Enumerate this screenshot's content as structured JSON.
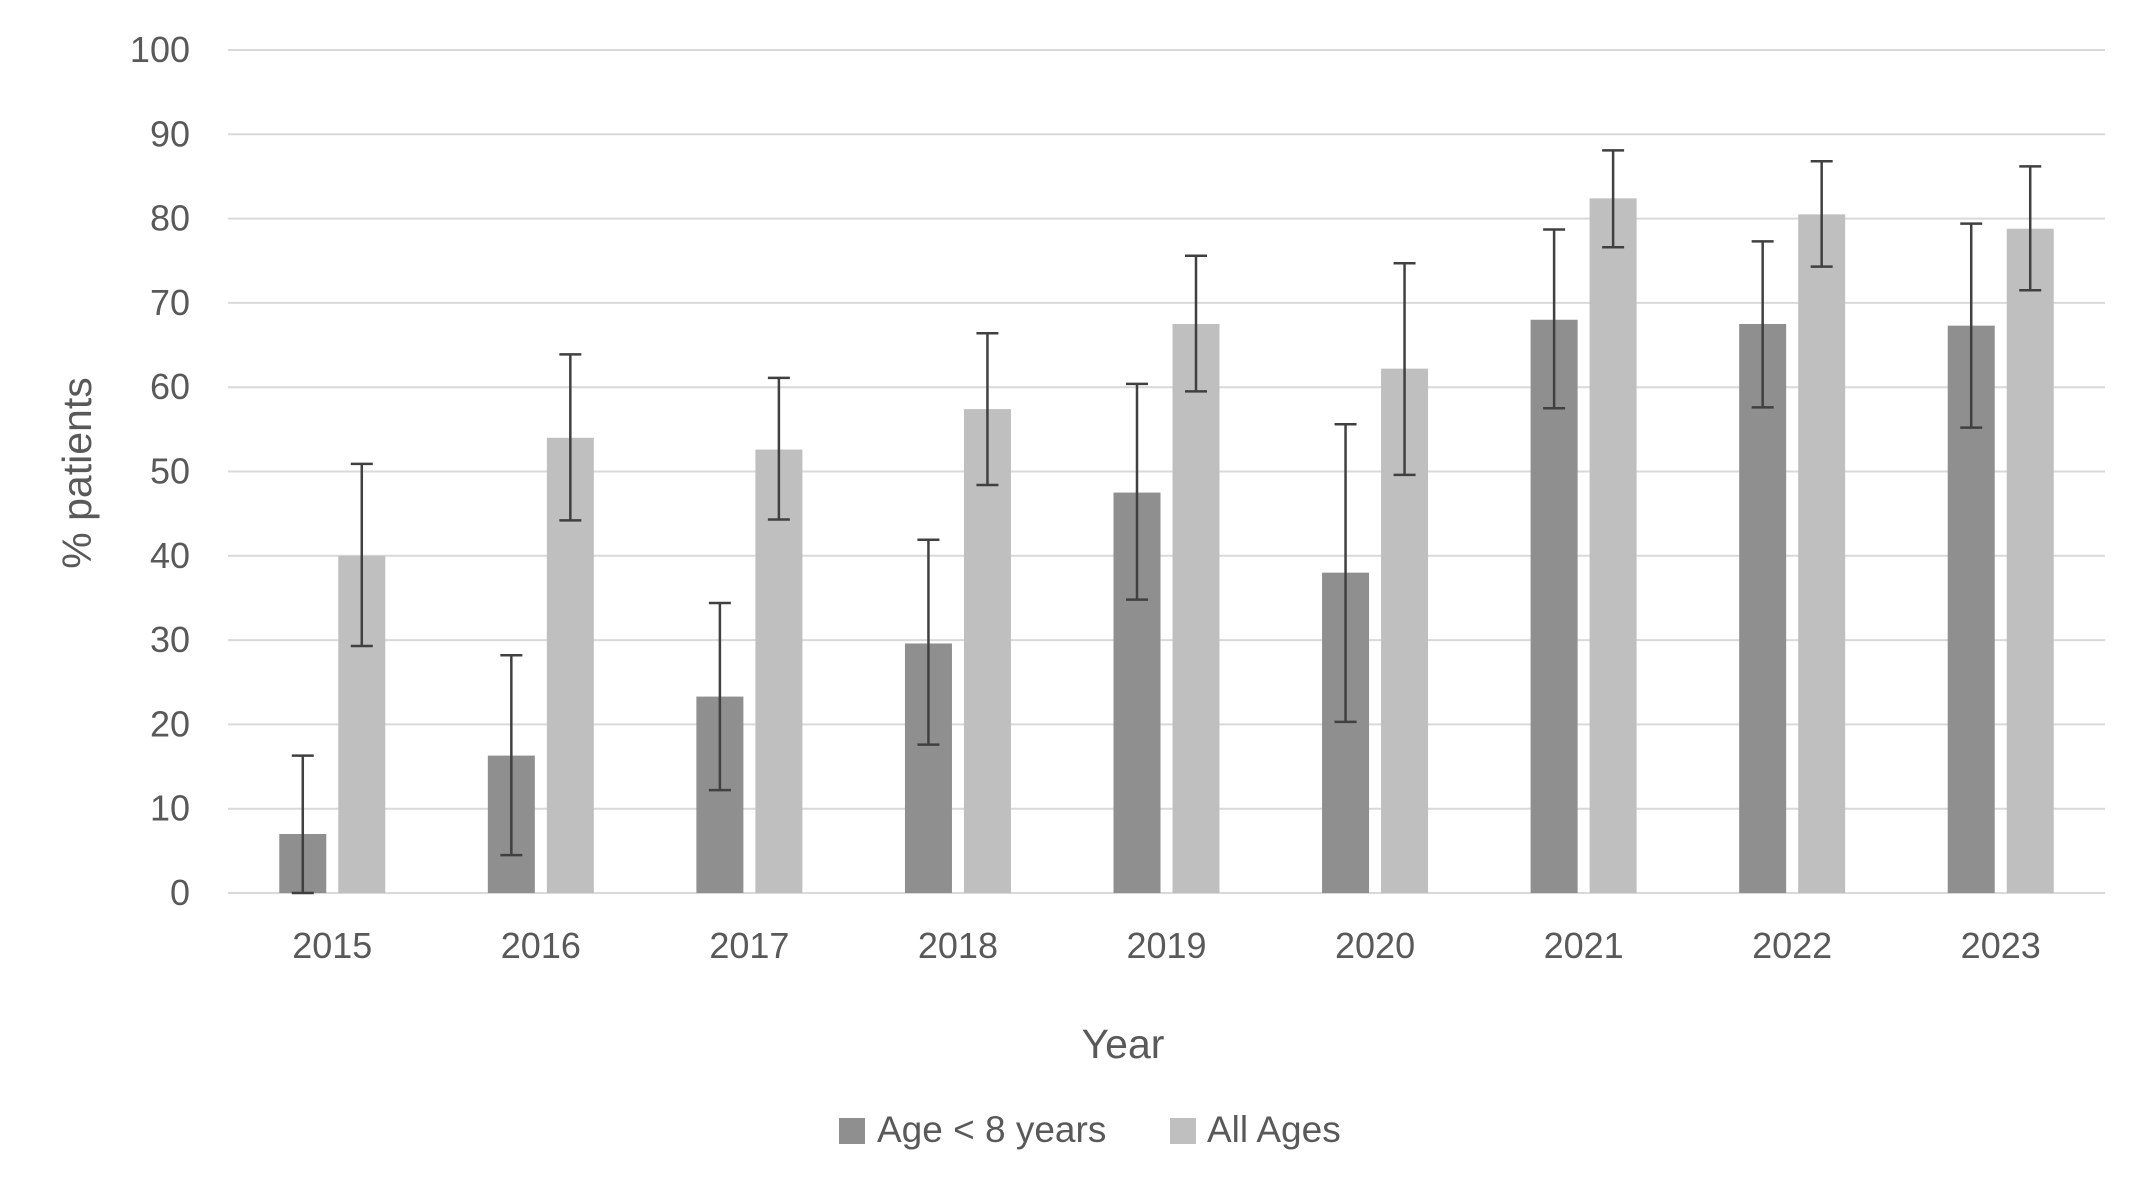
{
  "chart_data": {
    "type": "bar",
    "title": "",
    "xlabel": "Year",
    "ylabel": "% patients",
    "ylim": [
      0,
      100
    ],
    "yticks": [
      0,
      10,
      20,
      30,
      40,
      50,
      60,
      70,
      80,
      90,
      100
    ],
    "grid": true,
    "legend_position": "bottom",
    "categories": [
      "2015",
      "2016",
      "2017",
      "2018",
      "2019",
      "2020",
      "2021",
      "2022",
      "2023"
    ],
    "series": [
      {
        "name": "Age < 8 years",
        "color": "#8f8f8f",
        "values": [
          7,
          16.3,
          23.3,
          29.6,
          47.5,
          38,
          68,
          67.5,
          67.3
        ],
        "error_low": [
          0,
          4.5,
          12.2,
          17.6,
          34.8,
          20.3,
          57.5,
          57.6,
          55.2
        ],
        "error_high": [
          16.3,
          28.2,
          34.4,
          41.9,
          60.4,
          55.6,
          78.7,
          77.3,
          79.4
        ]
      },
      {
        "name": "All Ages",
        "color": "#bfbfbf",
        "values": [
          40,
          54,
          52.6,
          57.4,
          67.5,
          62.2,
          82.4,
          80.5,
          78.8
        ],
        "error_low": [
          29.3,
          44.2,
          44.3,
          48.4,
          59.5,
          49.6,
          76.6,
          74.3,
          71.5
        ],
        "error_high": [
          50.9,
          63.9,
          61.1,
          66.4,
          75.6,
          74.7,
          88.1,
          86.8,
          86.2
        ]
      }
    ]
  },
  "colors": {
    "gridline": "#d9d9d9",
    "errorbar": "#404040",
    "text": "#595959"
  }
}
